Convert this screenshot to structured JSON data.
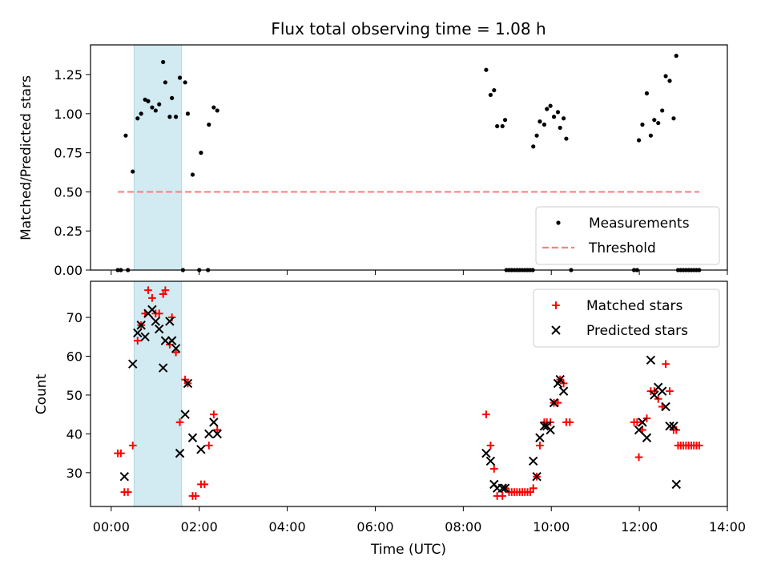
{
  "title": "Flux total observing time = 1.08 h",
  "xlabel": "Time (UTC)",
  "x_ticks": [
    "00:00",
    "02:00",
    "04:00",
    "06:00",
    "08:00",
    "10:00",
    "12:00",
    "14:00"
  ],
  "highlight": {
    "x": [
      0.52,
      1.6
    ],
    "color": "#add8e6"
  },
  "chart_data": [
    {
      "type": "scatter",
      "ylabel": "Matched/Predicted stars",
      "xlim": [
        -0.47,
        14.0
      ],
      "ylim": [
        0.0,
        1.44
      ],
      "y_ticks": [
        "0.00",
        "0.25",
        "0.50",
        "0.75",
        "1.00",
        "1.25"
      ],
      "legend": "bottom-right",
      "series": [
        {
          "name": "Measurements",
          "marker": "dot",
          "color": "#000000",
          "points": [
            [
              0.15,
              0
            ],
            [
              0.22,
              0
            ],
            [
              0.38,
              0
            ],
            [
              0.33,
              0.86
            ],
            [
              0.49,
              0.63
            ],
            [
              0.6,
              0.97
            ],
            [
              0.68,
              1.0
            ],
            [
              0.77,
              1.09
            ],
            [
              0.84,
              1.08
            ],
            [
              0.93,
              1.04
            ],
            [
              1.01,
              1.02
            ],
            [
              1.09,
              1.06
            ],
            [
              1.18,
              1.33
            ],
            [
              1.23,
              1.2
            ],
            [
              1.33,
              0.98
            ],
            [
              1.38,
              1.1
            ],
            [
              1.47,
              0.98
            ],
            [
              1.56,
              1.23
            ],
            [
              1.68,
              1.2
            ],
            [
              1.74,
              1.0
            ],
            [
              1.85,
              0.61
            ],
            [
              2.04,
              0.75
            ],
            [
              2.22,
              0.93
            ],
            [
              2.33,
              1.04
            ],
            [
              2.41,
              1.02
            ],
            [
              1.63,
              0
            ],
            [
              2.0,
              0
            ],
            [
              2.2,
              0
            ],
            [
              8.52,
              1.28
            ],
            [
              8.62,
              1.12
            ],
            [
              8.7,
              1.15
            ],
            [
              8.77,
              0.92
            ],
            [
              8.89,
              0.92
            ],
            [
              8.95,
              0.96
            ],
            [
              9.59,
              0.79
            ],
            [
              9.67,
              0.86
            ],
            [
              9.74,
              0.95
            ],
            [
              9.84,
              0.93
            ],
            [
              9.9,
              1.03
            ],
            [
              9.98,
              1.05
            ],
            [
              10.06,
              0.98
            ],
            [
              10.15,
              1.01
            ],
            [
              10.2,
              0.91
            ],
            [
              10.28,
              0.97
            ],
            [
              10.34,
              0.84
            ],
            [
              8.98,
              0
            ],
            [
              9.04,
              0
            ],
            [
              9.1,
              0
            ],
            [
              9.16,
              0
            ],
            [
              9.22,
              0
            ],
            [
              9.28,
              0
            ],
            [
              9.34,
              0
            ],
            [
              9.4,
              0
            ],
            [
              9.46,
              0
            ],
            [
              9.52,
              0
            ],
            [
              9.58,
              0
            ],
            [
              10.45,
              0
            ],
            [
              11.95,
              0
            ],
            [
              11.99,
              0.83
            ],
            [
              12.07,
              0.93
            ],
            [
              12.17,
              1.13
            ],
            [
              12.26,
              0.86
            ],
            [
              12.34,
              0.96
            ],
            [
              12.43,
              0.94
            ],
            [
              12.52,
              1.02
            ],
            [
              12.6,
              1.24
            ],
            [
              12.69,
              1.21
            ],
            [
              12.78,
              0.97
            ],
            [
              12.84,
              1.37
            ],
            [
              11.88,
              0
            ],
            [
              12.88,
              0
            ],
            [
              12.94,
              0
            ],
            [
              13.0,
              0
            ],
            [
              13.06,
              0
            ],
            [
              13.12,
              0
            ],
            [
              13.18,
              0
            ],
            [
              13.24,
              0
            ],
            [
              13.3,
              0
            ],
            [
              13.36,
              0
            ]
          ]
        },
        {
          "name": "Threshold",
          "marker": "dashed-line",
          "color": "#ff7f7f",
          "x": [
            0.15,
            13.36
          ],
          "y": [
            0.5,
            0.5
          ]
        }
      ]
    },
    {
      "type": "scatter",
      "ylabel": "Count",
      "xlim": [
        -0.47,
        14.0
      ],
      "ylim": [
        21.3,
        79.3
      ],
      "y_ticks": [
        "30",
        "40",
        "50",
        "60",
        "70"
      ],
      "legend": "top-right",
      "series": [
        {
          "name": "Matched stars",
          "marker": "plus",
          "color": "#ff0000",
          "points": [
            [
              0.15,
              35
            ],
            [
              0.22,
              35
            ],
            [
              0.3,
              25
            ],
            [
              0.38,
              25
            ],
            [
              0.49,
              37
            ],
            [
              0.6,
              64
            ],
            [
              0.68,
              68
            ],
            [
              0.77,
              71
            ],
            [
              0.84,
              77
            ],
            [
              0.93,
              75
            ],
            [
              1.01,
              71
            ],
            [
              1.09,
              71
            ],
            [
              1.18,
              76
            ],
            [
              1.23,
              77
            ],
            [
              1.33,
              63
            ],
            [
              1.38,
              70
            ],
            [
              1.47,
              61
            ],
            [
              1.56,
              43
            ],
            [
              1.68,
              54
            ],
            [
              1.74,
              53
            ],
            [
              1.85,
              24
            ],
            [
              1.92,
              24
            ],
            [
              2.04,
              27
            ],
            [
              2.12,
              27
            ],
            [
              2.22,
              37
            ],
            [
              2.33,
              45
            ],
            [
              2.41,
              41
            ],
            [
              8.52,
              45
            ],
            [
              8.62,
              37
            ],
            [
              8.7,
              31
            ],
            [
              8.77,
              24
            ],
            [
              8.89,
              24
            ],
            [
              8.95,
              26
            ],
            [
              9.04,
              25
            ],
            [
              9.1,
              25
            ],
            [
              9.16,
              25
            ],
            [
              9.22,
              25
            ],
            [
              9.28,
              25
            ],
            [
              9.34,
              25
            ],
            [
              9.4,
              25
            ],
            [
              9.46,
              25
            ],
            [
              9.52,
              25
            ],
            [
              9.59,
              26
            ],
            [
              9.67,
              29
            ],
            [
              9.74,
              37
            ],
            [
              9.84,
              43
            ],
            [
              9.9,
              43
            ],
            [
              9.98,
              43
            ],
            [
              10.06,
              48
            ],
            [
              10.15,
              48
            ],
            [
              10.2,
              54
            ],
            [
              10.28,
              53
            ],
            [
              10.34,
              43
            ],
            [
              10.42,
              43
            ],
            [
              11.88,
              43
            ],
            [
              11.95,
              43
            ],
            [
              11.99,
              34
            ],
            [
              12.07,
              41
            ],
            [
              12.17,
              44
            ],
            [
              12.26,
              51
            ],
            [
              12.34,
              51
            ],
            [
              12.43,
              49
            ],
            [
              12.52,
              47
            ],
            [
              12.6,
              58
            ],
            [
              12.69,
              51
            ],
            [
              12.78,
              41
            ],
            [
              12.84,
              41
            ],
            [
              12.88,
              37
            ],
            [
              12.94,
              37
            ],
            [
              13.0,
              37
            ],
            [
              13.06,
              37
            ],
            [
              13.12,
              37
            ],
            [
              13.18,
              37
            ],
            [
              13.24,
              37
            ],
            [
              13.3,
              37
            ],
            [
              13.36,
              37
            ]
          ]
        },
        {
          "name": "Predicted stars",
          "marker": "x",
          "color": "#000000",
          "points": [
            [
              0.3,
              29
            ],
            [
              0.49,
              58
            ],
            [
              0.6,
              66
            ],
            [
              0.68,
              68
            ],
            [
              0.77,
              65
            ],
            [
              0.84,
              71
            ],
            [
              0.93,
              72
            ],
            [
              1.01,
              69
            ],
            [
              1.09,
              67
            ],
            [
              1.18,
              57
            ],
            [
              1.23,
              64
            ],
            [
              1.33,
              69
            ],
            [
              1.38,
              64
            ],
            [
              1.47,
              62
            ],
            [
              1.56,
              35
            ],
            [
              1.68,
              45
            ],
            [
              1.74,
              53
            ],
            [
              1.85,
              39
            ],
            [
              2.04,
              36
            ],
            [
              2.22,
              40
            ],
            [
              2.33,
              43
            ],
            [
              2.41,
              40
            ],
            [
              8.52,
              35
            ],
            [
              8.62,
              33
            ],
            [
              8.7,
              27
            ],
            [
              8.77,
              26
            ],
            [
              8.89,
              26
            ],
            [
              8.95,
              26
            ],
            [
              9.59,
              33
            ],
            [
              9.67,
              29
            ],
            [
              9.74,
              39
            ],
            [
              9.84,
              42
            ],
            [
              9.9,
              42
            ],
            [
              9.98,
              41
            ],
            [
              10.06,
              48
            ],
            [
              10.15,
              53
            ],
            [
              10.2,
              54
            ],
            [
              10.28,
              51
            ],
            [
              11.99,
              41
            ],
            [
              12.07,
              43
            ],
            [
              12.17,
              39
            ],
            [
              12.26,
              59
            ],
            [
              12.34,
              50
            ],
            [
              12.43,
              52
            ],
            [
              12.52,
              51
            ],
            [
              12.6,
              47
            ],
            [
              12.69,
              42
            ],
            [
              12.78,
              42
            ],
            [
              12.84,
              27
            ]
          ]
        }
      ]
    }
  ]
}
